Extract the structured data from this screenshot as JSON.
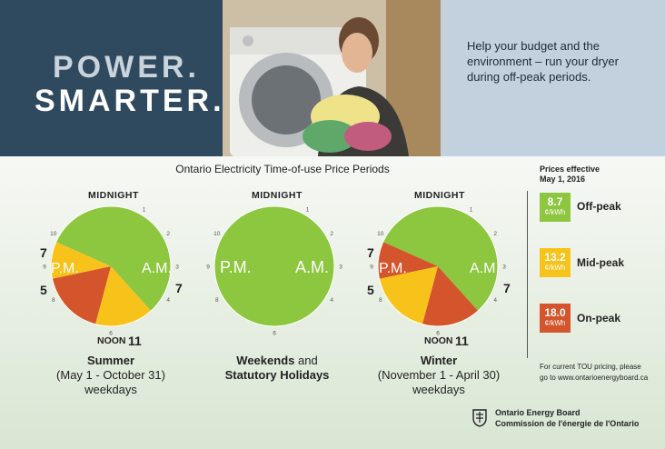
{
  "header": {
    "brand_line1": "POWER.",
    "brand_line2": "SMARTER.",
    "tagline": "Help your budget and the environment – run your dryer during off-peak periods."
  },
  "title": "Ontario Electricity Time-of-use Price Periods",
  "clock_labels": {
    "midnight": "MIDNIGHT",
    "noon": "NOON",
    "pm": "P.M.",
    "am": "A.M.",
    "seven": "7",
    "five": "5",
    "eleven": "11"
  },
  "clocks": [
    {
      "id": "summer",
      "caption_bold": "Summer",
      "caption_rest": "(May 1 - October 31) weekdays",
      "periods": [
        {
          "from": 19,
          "to": 7,
          "rate": "off-peak"
        },
        {
          "from": 7,
          "to": 11,
          "rate": "mid-peak"
        },
        {
          "from": 11,
          "to": 17,
          "rate": "on-peak"
        },
        {
          "from": 17,
          "to": 19,
          "rate": "mid-peak"
        }
      ]
    },
    {
      "id": "weekends",
      "caption_bold": "Weekends",
      "caption_mid": " and",
      "caption_bold2": "Statutory Holidays",
      "periods": [
        {
          "from": 0,
          "to": 24,
          "rate": "off-peak"
        }
      ]
    },
    {
      "id": "winter",
      "caption_bold": "Winter",
      "caption_rest": "(November 1 - April 30) weekdays",
      "periods": [
        {
          "from": 19,
          "to": 7,
          "rate": "off-peak"
        },
        {
          "from": 7,
          "to": 11,
          "rate": "on-peak"
        },
        {
          "from": 11,
          "to": 17,
          "rate": "mid-peak"
        },
        {
          "from": 17,
          "to": 19,
          "rate": "on-peak"
        }
      ]
    }
  ],
  "legend": {
    "title_line1": "Prices effective",
    "title_line2": "May 1, 2016",
    "unit": "¢/kWh",
    "rates": [
      {
        "key": "off-peak",
        "price": "8.7",
        "label": "Off-peak",
        "color": "#8dc63f"
      },
      {
        "key": "mid-peak",
        "price": "13.2",
        "label": "Mid-peak",
        "color": "#f7c31b"
      },
      {
        "key": "on-peak",
        "price": "18.0",
        "label": "On-peak",
        "color": "#d4552b"
      }
    ]
  },
  "note": {
    "line1": "For current TOU pricing, please",
    "line2": "go to www.ontarioenergyboard.ca"
  },
  "footer": {
    "org_en": "Ontario Energy Board",
    "org_fr": "Commission de l'énergie de l'Ontario"
  }
}
